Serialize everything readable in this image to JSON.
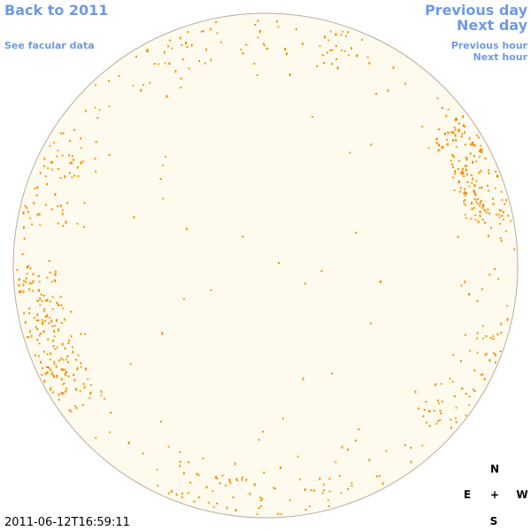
{
  "header": {
    "back_link": "Back to 2011",
    "facular_link": "See facular data"
  },
  "navigation": {
    "previous_day": "Previous day",
    "next_day": "Next day",
    "previous_hour": "Previous hour",
    "next_hour": "Next hour"
  },
  "compass": {
    "north": "N",
    "east": "E",
    "center": "+",
    "west": "W",
    "south": "S"
  },
  "timestamp": "2011-06-12T16:59:11"
}
